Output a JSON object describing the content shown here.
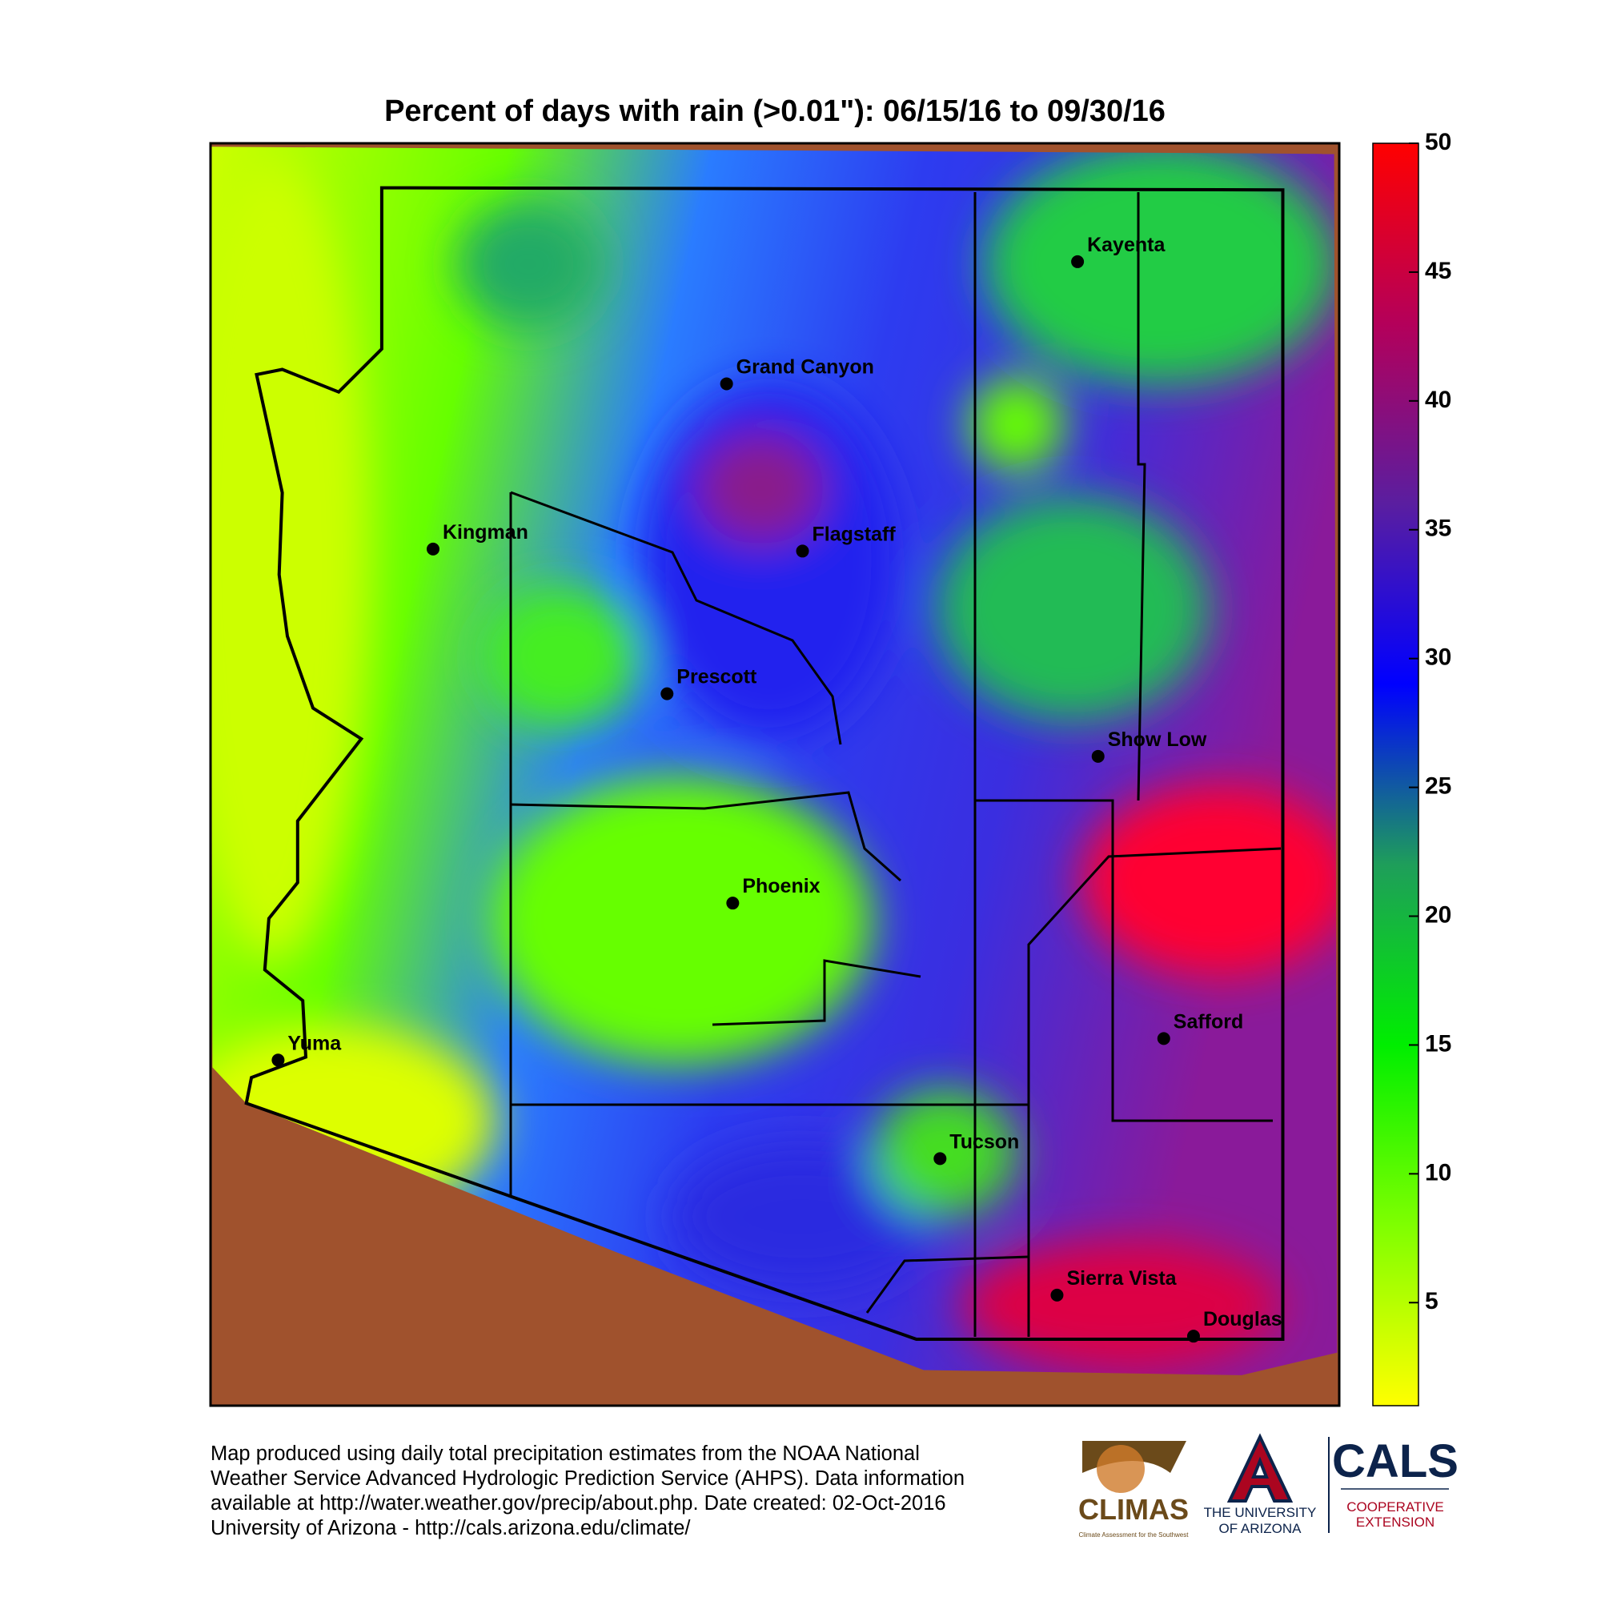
{
  "title": "Percent of days with rain (>0.01\"): 06/15/16 to 09/30/16",
  "colorbar": {
    "lim": [
      1,
      50
    ],
    "ticks": [
      5,
      10,
      15,
      20,
      25,
      30,
      35,
      40,
      45,
      50
    ],
    "colors": [
      "#ffff00",
      "#7fff00",
      "#00ee00",
      "#1e9e5a",
      "#0000ff",
      "#5a1ea0",
      "#b4005a",
      "#ff0000"
    ]
  },
  "cities": [
    "Kayenta",
    "Grand Canyon",
    "Kingman",
    "Flagstaff",
    "Prescott",
    "Show Low",
    "Phoenix",
    "Safford",
    "Yuma",
    "Tucson",
    "Sierra Vista",
    "Douglas"
  ],
  "footer": {
    "lines": [
      "Map produced using daily total precipitation estimates from the NOAA National",
      "Weather Service Advanced Hydrologic Prediction Service (AHPS). Data information",
      "available at http://water.weather.gov/precip/about.php. Date created: 02-Oct-2016",
      "University of Arizona - http://cals.arizona.edu/climate/"
    ]
  },
  "logos": {
    "climas": "CLIMAS",
    "climas_sub": "Climate Assessment for the Southwest",
    "ua_line1": "THE UNIVERSITY",
    "ua_line2": "OF ARIZONA",
    "cals": "CALS",
    "cals_line1": "COOPERATIVE",
    "cals_line2": "EXTENSION"
  }
}
